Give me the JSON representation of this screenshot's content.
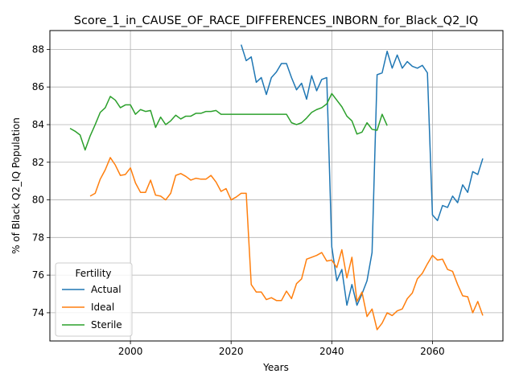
{
  "chart_data": {
    "type": "line",
    "title": "Score_1_in_CAUSE_OF_RACE_DIFFERENCES_INBORN_for_Black_Q2_IQ",
    "xlabel": "Years",
    "ylabel": "% of Black Q2_IQ Population",
    "xlim": [
      1984,
      2074
    ],
    "ylim": [
      72.5,
      89.0
    ],
    "x_ticks": [
      2000,
      2020,
      2040,
      2060
    ],
    "y_ticks": [
      74,
      76,
      78,
      80,
      82,
      84,
      86,
      88
    ],
    "grid": true,
    "legend": {
      "title": "Fertility",
      "placement": "lower-left"
    },
    "series": [
      {
        "name": "Actual",
        "color": "#1f77b4",
        "x": [
          2022,
          2023,
          2024,
          2025,
          2026,
          2027,
          2028,
          2029,
          2030,
          2031,
          2032,
          2033,
          2034,
          2035,
          2036,
          2037,
          2038,
          2039,
          2040,
          2041,
          2042,
          2043,
          2044,
          2045,
          2046,
          2047,
          2048,
          2049,
          2050,
          2051,
          2052,
          2053,
          2054,
          2055,
          2056,
          2057,
          2058,
          2059,
          2060,
          2061,
          2062,
          2063,
          2064,
          2065,
          2066,
          2067,
          2068,
          2069,
          2070
        ],
        "values": [
          88.25,
          87.4,
          87.6,
          86.25,
          86.5,
          85.6,
          86.5,
          86.8,
          87.25,
          87.25,
          86.5,
          85.85,
          86.2,
          85.35,
          86.6,
          85.8,
          86.4,
          86.5,
          77.5,
          75.7,
          76.3,
          74.4,
          75.5,
          74.4,
          75.0,
          75.7,
          77.2,
          86.65,
          86.75,
          87.9,
          87.0,
          87.7,
          87.0,
          87.35,
          87.1,
          87.0,
          87.15,
          86.75,
          79.2,
          78.9,
          79.7,
          79.6,
          80.2,
          79.85,
          80.8,
          80.4,
          81.5,
          81.35,
          82.2
        ]
      },
      {
        "name": "Ideal",
        "color": "#ff7f0e",
        "x": [
          1992,
          1993,
          1994,
          1995,
          1996,
          1997,
          1998,
          1999,
          2000,
          2001,
          2002,
          2003,
          2004,
          2005,
          2006,
          2007,
          2008,
          2009,
          2010,
          2011,
          2012,
          2013,
          2014,
          2015,
          2016,
          2017,
          2018,
          2019,
          2020,
          2021,
          2022,
          2023,
          2024,
          2025,
          2026,
          2027,
          2028,
          2029,
          2030,
          2031,
          2032,
          2033,
          2034,
          2035,
          2036,
          2037,
          2038,
          2039,
          2040,
          2041,
          2042,
          2043,
          2044,
          2045,
          2046,
          2047,
          2048,
          2049,
          2050,
          2051,
          2052,
          2053,
          2054,
          2055,
          2056,
          2057,
          2058,
          2059,
          2060,
          2061,
          2062,
          2063,
          2064,
          2065,
          2066,
          2067,
          2068,
          2069,
          2070
        ],
        "values": [
          80.2,
          80.35,
          81.1,
          81.6,
          82.25,
          81.85,
          81.3,
          81.35,
          81.7,
          80.9,
          80.4,
          80.4,
          81.05,
          80.25,
          80.2,
          80.0,
          80.35,
          81.3,
          81.4,
          81.25,
          81.05,
          81.15,
          81.1,
          81.1,
          81.3,
          80.95,
          80.45,
          80.6,
          80.0,
          80.15,
          80.35,
          80.35,
          75.5,
          75.1,
          75.1,
          74.7,
          74.8,
          74.65,
          74.65,
          75.15,
          74.75,
          75.55,
          75.8,
          76.85,
          76.95,
          77.05,
          77.2,
          76.75,
          76.8,
          76.4,
          77.35,
          75.85,
          76.95,
          74.6,
          75.1,
          73.8,
          74.2,
          73.1,
          73.45,
          74.0,
          73.85,
          74.1,
          74.2,
          74.75,
          75.05,
          75.8,
          76.1,
          76.6,
          77.05,
          76.8,
          76.85,
          76.3,
          76.2,
          75.5,
          74.9,
          74.85,
          74.0,
          74.6,
          73.85
        ]
      },
      {
        "name": "Sterile",
        "color": "#2ca02c",
        "x": [
          1988,
          1989,
          1990,
          1991,
          1992,
          1993,
          1994,
          1995,
          1996,
          1997,
          1998,
          1999,
          2000,
          2001,
          2002,
          2003,
          2004,
          2005,
          2006,
          2007,
          2008,
          2009,
          2010,
          2011,
          2012,
          2013,
          2014,
          2015,
          2016,
          2017,
          2018,
          2019,
          2020,
          2021,
          2022,
          2023,
          2024,
          2025,
          2026,
          2027,
          2028,
          2029,
          2030,
          2031,
          2032,
          2033,
          2034,
          2035,
          2036,
          2037,
          2038,
          2039,
          2040,
          2041,
          2042,
          2043,
          2044,
          2045,
          2046,
          2047,
          2048,
          2049,
          2050,
          2051
        ],
        "values": [
          83.8,
          83.65,
          83.45,
          82.65,
          83.4,
          84.0,
          84.65,
          84.9,
          85.5,
          85.3,
          84.9,
          85.05,
          85.05,
          84.55,
          84.8,
          84.7,
          84.75,
          83.85,
          84.4,
          84.0,
          84.2,
          84.5,
          84.3,
          84.45,
          84.45,
          84.6,
          84.6,
          84.7,
          84.7,
          84.75,
          84.55,
          84.55,
          84.55,
          84.55,
          84.55,
          84.55,
          84.55,
          84.55,
          84.55,
          84.55,
          84.55,
          84.55,
          84.55,
          84.55,
          84.1,
          84.0,
          84.1,
          84.35,
          84.65,
          84.8,
          84.9,
          85.1,
          85.65,
          85.3,
          84.95,
          84.45,
          84.2,
          83.5,
          83.6,
          84.1,
          83.75,
          83.7,
          84.55,
          83.95
        ]
      }
    ]
  }
}
